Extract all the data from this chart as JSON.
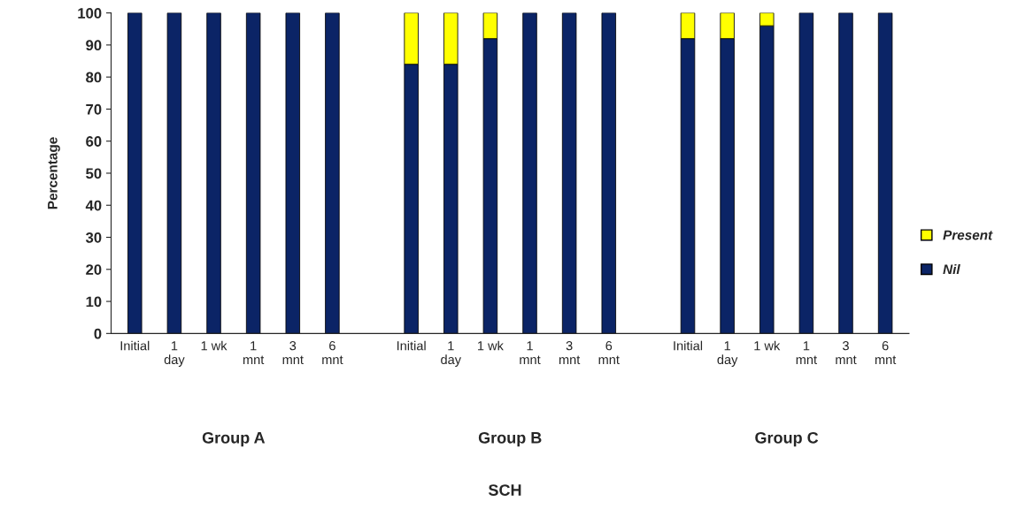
{
  "chart_data": {
    "type": "bar",
    "stacked": true,
    "ylabel": "Percentage",
    "categories": [
      "Initial",
      "1\nday",
      "1 wk",
      "1\nmnt",
      "3\nmnt",
      "6\nmnt",
      null,
      "Initial",
      "1\nday",
      "1 wk",
      "1\nmnt",
      "3\nmnt",
      "6\nmnt",
      null,
      "Initial",
      "1\nday",
      "1 wk",
      "1\nmnt",
      "3\nmnt",
      "6\nmnt"
    ],
    "series": [
      {
        "name": "Nil",
        "color": "#0b2466",
        "values": [
          100,
          100,
          100,
          100,
          100,
          100,
          null,
          84,
          84,
          92,
          100,
          100,
          100,
          null,
          92,
          92,
          96,
          100,
          100,
          100
        ]
      },
      {
        "name": "Present",
        "color": "#ffff00",
        "values": [
          0,
          0,
          0,
          0,
          0,
          0,
          null,
          16,
          16,
          8,
          0,
          0,
          0,
          null,
          8,
          8,
          4,
          0,
          0,
          0
        ]
      }
    ],
    "annotations": [
      "Group A",
      "Group B",
      "Group C",
      "SCH"
    ],
    "ylim": [
      0,
      100
    ],
    "yticks": [
      0,
      10,
      20,
      30,
      40,
      50,
      60,
      70,
      80,
      90,
      100
    ],
    "grid": false,
    "legend": "right"
  }
}
